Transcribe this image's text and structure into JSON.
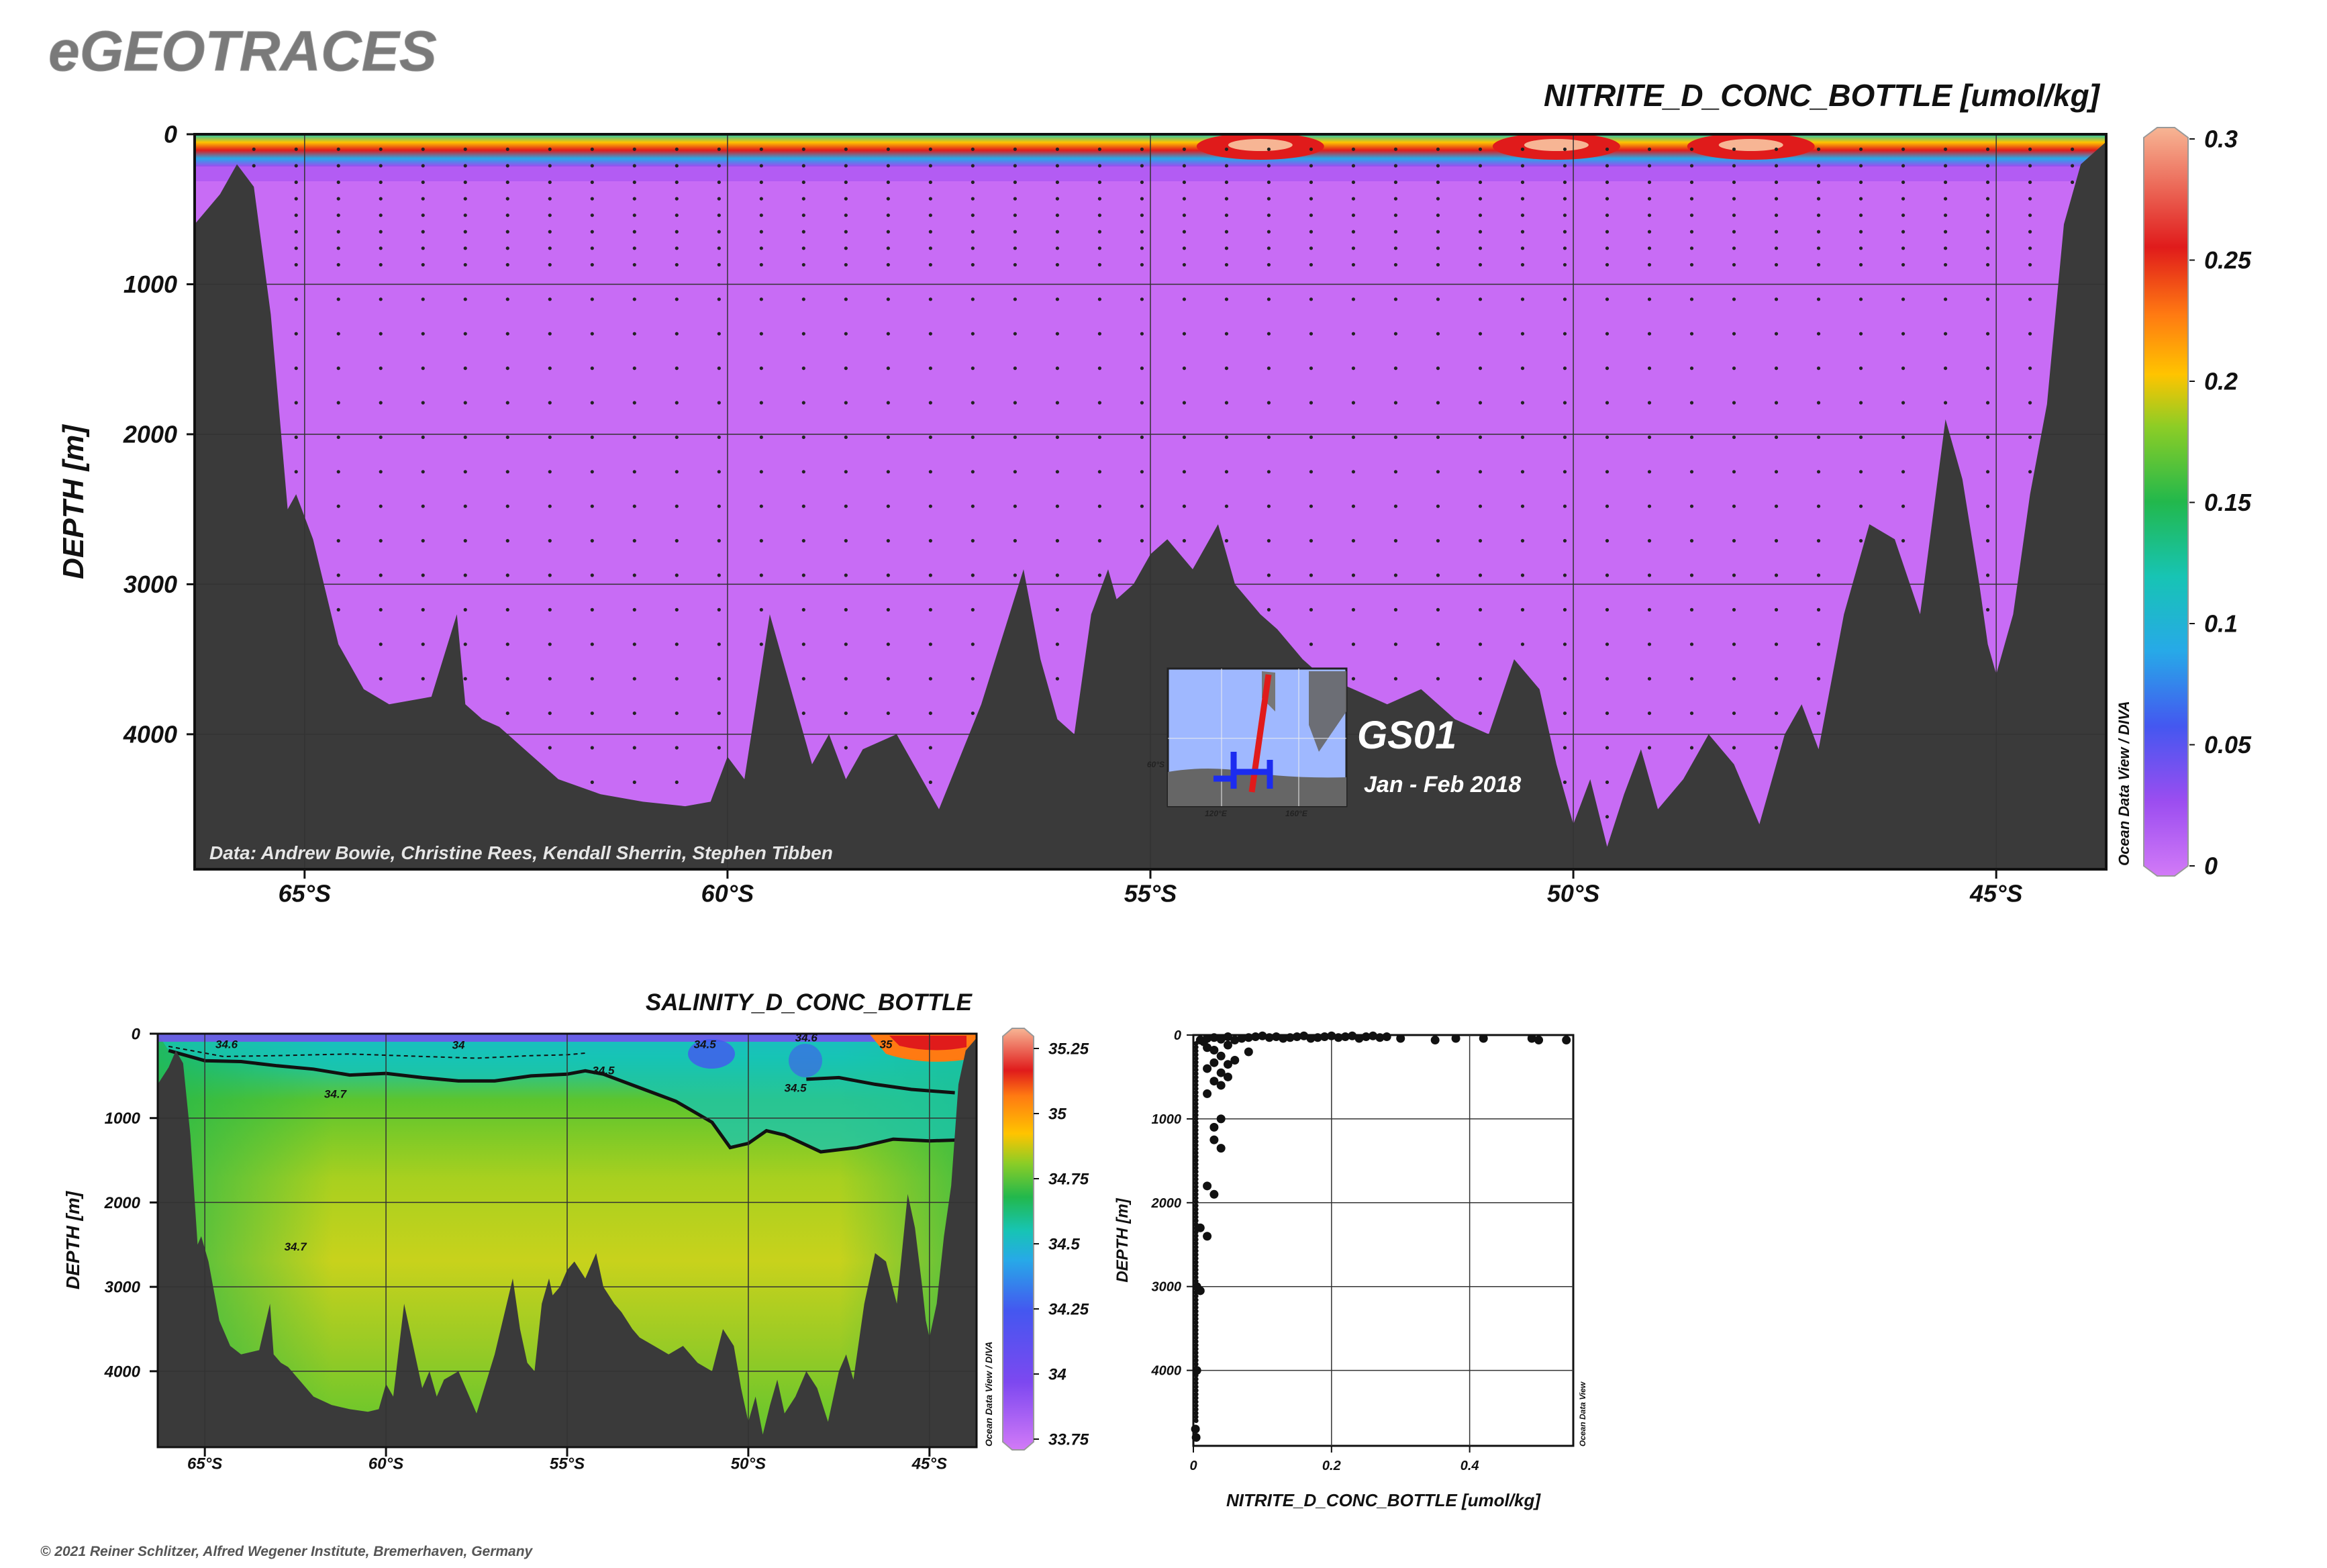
{
  "app_title": "eGEOTRACES",
  "copyright": "© 2021 Reiner Schlitzer, Alfred Wegener Institute, Bremerhaven, Germany",
  "watermark": "Ocean Data View / DIVA",
  "watermark_scatter": "Ocean Data View",
  "colors": {
    "seafloor": "#3a3a3a",
    "background_violet": "#c86cf5",
    "palette": [
      "#d27af7",
      "#9b4df0",
      "#4457f0",
      "#27a9e8",
      "#17c4b4",
      "#22b84c",
      "#5cc52e",
      "#c8d21c",
      "#ffc400",
      "#ff7a12",
      "#e01b1b",
      "#f7b594"
    ]
  },
  "chart_data": [
    {
      "type": "heatmap",
      "title": "NITRITE_D_CONC_BOTTLE [umol/kg]",
      "ylabel": "DEPTH [m]",
      "xlabel": "",
      "x_ticks": [
        "65°S",
        "60°S",
        "55°S",
        "50°S",
        "45°S"
      ],
      "x_tick_values": [
        -65,
        -60,
        -55,
        -50,
        -45
      ],
      "y_ticks": [
        "0",
        "1000",
        "2000",
        "3000",
        "4000"
      ],
      "y_tick_values": [
        0,
        1000,
        2000,
        3000,
        4000
      ],
      "xlim": [
        -66.3,
        -43.7
      ],
      "ylim": [
        4900,
        0
      ],
      "grid": true,
      "colorbar": {
        "ticks": [
          "0.3",
          "0.25",
          "0.2",
          "0.15",
          "0.1",
          "0.05",
          "0"
        ],
        "tick_values": [
          0.3,
          0.25,
          0.2,
          0.15,
          0.1,
          0.05,
          0
        ],
        "range": [
          0,
          0.3
        ]
      },
      "credits": "Data: Andrew Bowie, Christine Rees, Kendall Sherrin, Stephen Tibben",
      "inset": {
        "section": "GS01",
        "date": "Jan - Feb 2018",
        "lon_ticks": [
          "120°E",
          "160°E"
        ],
        "lat_tick": "60°S"
      },
      "surface_maxima_latitude": [
        -53.7,
        -50.2,
        -47.9
      ],
      "bathymetry": {
        "lat": [
          -66.3,
          -66.0,
          -65.8,
          -65.6,
          -65.4,
          -65.2,
          -65.1,
          -64.9,
          -64.6,
          -64.3,
          -64.0,
          -63.5,
          -63.2,
          -63.1,
          -62.9,
          -62.7,
          -62.4,
          -62.0,
          -61.5,
          -61.0,
          -60.5,
          -60.2,
          -60.0,
          -59.8,
          -59.5,
          -59.2,
          -59.0,
          -58.8,
          -58.6,
          -58.4,
          -58.0,
          -57.5,
          -57.0,
          -56.5,
          -56.3,
          -56.1,
          -55.9,
          -55.7,
          -55.5,
          -55.4,
          -55.2,
          -55.0,
          -54.8,
          -54.5,
          -54.2,
          -54.0,
          -53.7,
          -53.5,
          -53.2,
          -53.0,
          -52.6,
          -52.2,
          -51.8,
          -51.4,
          -51.0,
          -50.7,
          -50.4,
          -50.2,
          -50.0,
          -49.8,
          -49.6,
          -49.4,
          -49.2,
          -49.0,
          -48.7,
          -48.4,
          -48.1,
          -47.8,
          -47.5,
          -47.3,
          -47.1,
          -46.8,
          -46.5,
          -46.2,
          -45.9,
          -45.6,
          -45.4,
          -45.2,
          -45.1,
          -45.0,
          -44.8,
          -44.6,
          -44.4,
          -44.2,
          -44.0,
          -43.8,
          -43.7
        ],
        "depth": [
          600,
          400,
          200,
          350,
          1200,
          2500,
          2400,
          2700,
          3400,
          3700,
          3800,
          3750,
          3200,
          3800,
          3900,
          3950,
          4100,
          4300,
          4400,
          4450,
          4480,
          4450,
          4150,
          4300,
          3200,
          3800,
          4200,
          4000,
          4300,
          4100,
          4000,
          4500,
          3800,
          2900,
          3500,
          3900,
          4000,
          3200,
          2900,
          3100,
          3000,
          2800,
          2700,
          2900,
          2600,
          3000,
          3200,
          3300,
          3500,
          3600,
          3700,
          3800,
          3700,
          3900,
          4000,
          3500,
          3700,
          4200,
          4600,
          4300,
          4750,
          4400,
          4100,
          4500,
          4300,
          4000,
          4200,
          4600,
          4000,
          3800,
          4100,
          3200,
          2600,
          2700,
          3200,
          1900,
          2300,
          3000,
          3400,
          3600,
          3200,
          2400,
          1800,
          600,
          200,
          100,
          50
        ]
      }
    },
    {
      "type": "heatmap",
      "title": "SALINITY_D_CONC_BOTTLE",
      "ylabel": "DEPTH [m]",
      "xlabel": "",
      "x_ticks": [
        "65°S",
        "60°S",
        "55°S",
        "50°S",
        "45°S"
      ],
      "x_tick_values": [
        -65,
        -60,
        -55,
        -50,
        -45
      ],
      "y_ticks": [
        "0",
        "1000",
        "2000",
        "3000",
        "4000"
      ],
      "y_tick_values": [
        0,
        1000,
        2000,
        3000,
        4000
      ],
      "xlim": [
        -66.3,
        -43.7
      ],
      "ylim": [
        4900,
        0
      ],
      "grid": true,
      "colorbar": {
        "ticks": [
          "35.25",
          "35",
          "34.75",
          "34.5",
          "34.25",
          "34",
          "33.75"
        ],
        "tick_values": [
          35.25,
          35,
          34.75,
          34.5,
          34.25,
          34,
          33.75
        ],
        "range": [
          33.75,
          35.25
        ]
      },
      "contour_labels": [
        {
          "text": "34.6",
          "lat": -64.4,
          "depth": 170
        },
        {
          "text": "34",
          "lat": -58.0,
          "depth": 180
        },
        {
          "text": "34.5",
          "lat": -51.2,
          "depth": 170
        },
        {
          "text": "34.6",
          "lat": -48.4,
          "depth": 90
        },
        {
          "text": "35",
          "lat": -46.2,
          "depth": 170
        },
        {
          "text": "34.5",
          "lat": -54.0,
          "depth": 480
        },
        {
          "text": "34.7",
          "lat": -61.4,
          "depth": 760
        },
        {
          "text": "34.5",
          "lat": -48.7,
          "depth": 690
        },
        {
          "text": "34.7",
          "lat": -62.5,
          "depth": 2570
        }
      ],
      "contour_34_5_lat": [
        -66.0,
        -65.0,
        -64.0,
        -63.0,
        -62.0,
        -61.0,
        -60.0,
        -59.0,
        -58.0,
        -57.0,
        -56.0,
        -55.0,
        -54.5,
        -54.0,
        -53.0,
        -52.0,
        -51.0,
        -50.5,
        -50.0,
        -49.5,
        -49.0,
        -48.0,
        -47.0,
        -46.0,
        -45.0,
        -44.2
      ],
      "contour_34_5_depth": [
        200,
        320,
        330,
        380,
        420,
        490,
        470,
        520,
        560,
        560,
        500,
        480,
        440,
        480,
        640,
        800,
        1050,
        1350,
        1300,
        1150,
        1200,
        1400,
        1350,
        1250,
        1270,
        1260
      ],
      "contour_34_6_lat": [
        -66.0,
        -64.5,
        -63.0,
        -61.0,
        -59.0,
        -57.5,
        -56.0,
        -55.0,
        -54.5
      ],
      "contour_34_6_depth": [
        150,
        270,
        260,
        240,
        270,
        290,
        260,
        250,
        230
      ],
      "contour_34_5_secondary_lat": [
        -48.4,
        -47.5,
        -46.5,
        -45.5,
        -44.3
      ],
      "contour_34_5_secondary_depth": [
        540,
        520,
        600,
        660,
        700
      ]
    },
    {
      "type": "scatter",
      "title": "",
      "xlabel": "NITRITE_D_CONC_BOTTLE [umol/kg]",
      "ylabel": "DEPTH [m]",
      "x_ticks": [
        "0",
        "0.2",
        "0.4"
      ],
      "x_tick_values": [
        0,
        0.2,
        0.4
      ],
      "y_ticks": [
        "0",
        "1000",
        "2000",
        "3000",
        "4000"
      ],
      "y_tick_values": [
        0,
        1000,
        2000,
        3000,
        4000
      ],
      "xlim": [
        0,
        0.55
      ],
      "ylim": [
        4900,
        0
      ],
      "grid": true,
      "x": [
        0.01,
        0.015,
        0.02,
        0.03,
        0.04,
        0.05,
        0.06,
        0.07,
        0.08,
        0.09,
        0.1,
        0.11,
        0.12,
        0.13,
        0.14,
        0.15,
        0.16,
        0.17,
        0.18,
        0.19,
        0.2,
        0.21,
        0.22,
        0.23,
        0.24,
        0.25,
        0.26,
        0.27,
        0.28,
        0.3,
        0.35,
        0.38,
        0.42,
        0.49,
        0.5,
        0.54,
        0.02,
        0.03,
        0.05,
        0.04,
        0.06,
        0.03,
        0.02,
        0.05,
        0.08,
        0.04,
        0.03,
        0.04,
        0.05,
        0.02,
        0.04,
        0.03,
        0.03,
        0.04,
        0.02,
        0.03,
        0.02,
        0.01,
        0.01,
        0.005,
        0.005,
        0.003,
        0.004
      ],
      "y": [
        60,
        80,
        40,
        30,
        50,
        20,
        60,
        40,
        30,
        20,
        10,
        30,
        20,
        40,
        30,
        20,
        10,
        40,
        30,
        20,
        10,
        30,
        20,
        10,
        40,
        20,
        10,
        30,
        20,
        40,
        60,
        40,
        40,
        40,
        60,
        60,
        150,
        180,
        120,
        250,
        300,
        330,
        400,
        350,
        200,
        450,
        550,
        600,
        500,
        700,
        1000,
        1100,
        1250,
        1350,
        1800,
        1900,
        2400,
        3050,
        2300,
        3000,
        4000,
        4700,
        4800
      ]
    }
  ]
}
